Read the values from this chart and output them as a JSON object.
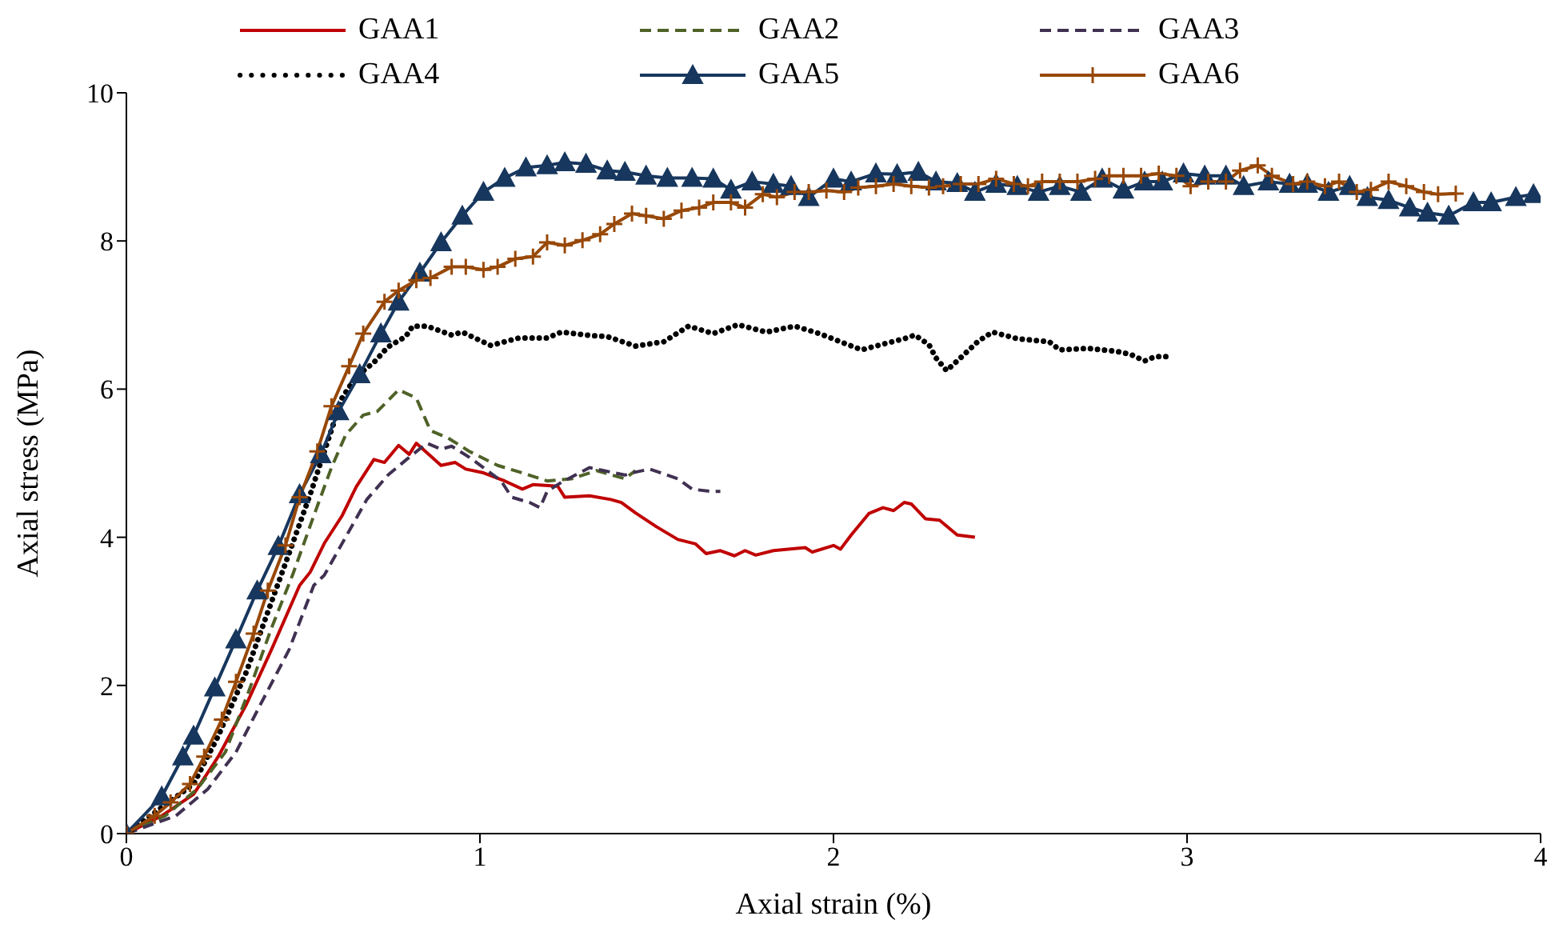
{
  "chart_data": {
    "type": "line",
    "xlabel": "Axial strain (%)",
    "ylabel": "Axial stress (MPa)",
    "xlim": [
      0,
      4
    ],
    "xticks": [
      0,
      1,
      2,
      3,
      4
    ],
    "ylim": [
      0,
      10
    ],
    "yticks": [
      0,
      2,
      4,
      6,
      8,
      10
    ],
    "grid": false,
    "legend": "top",
    "series": [
      {
        "name": "GAA1",
        "color": "#c00000",
        "line_style": "solid",
        "marker": "none",
        "x": [
          0,
          0.1,
          0.19,
          0.26,
          0.34,
          0.41,
          0.49,
          0.52,
          0.56,
          0.61,
          0.65,
          0.7,
          0.73,
          0.77,
          0.8,
          0.82,
          0.89,
          0.93,
          0.96,
          1.01,
          1.07,
          1.12,
          1.15,
          1.22,
          1.24,
          1.31,
          1.37,
          1.4,
          1.44,
          1.5,
          1.56,
          1.61,
          1.64,
          1.68,
          1.72,
          1.75,
          1.78,
          1.83,
          1.92,
          1.94,
          2.0,
          2.02,
          2.05,
          2.1,
          2.14,
          2.17,
          2.2,
          2.22,
          2.26,
          2.3,
          2.35,
          2.4
        ],
        "values": [
          0,
          0.24,
          0.53,
          1.04,
          1.75,
          2.48,
          3.35,
          3.53,
          3.92,
          4.29,
          4.68,
          5.05,
          5.01,
          5.24,
          5.12,
          5.27,
          4.97,
          5.01,
          4.92,
          4.87,
          4.76,
          4.65,
          4.71,
          4.69,
          4.54,
          4.56,
          4.51,
          4.47,
          4.33,
          4.14,
          3.97,
          3.91,
          3.78,
          3.82,
          3.75,
          3.82,
          3.76,
          3.82,
          3.86,
          3.8,
          3.89,
          3.84,
          4.03,
          4.32,
          4.4,
          4.36,
          4.47,
          4.45,
          4.25,
          4.23,
          4.03,
          4.0
        ]
      },
      {
        "name": "GAA2",
        "color": "#4f6228",
        "line_style": "dashed",
        "marker": "none",
        "x": [
          0,
          0.11,
          0.2,
          0.28,
          0.35,
          0.41,
          0.47,
          0.53,
          0.58,
          0.62,
          0.67,
          0.71,
          0.77,
          0.82,
          0.86,
          0.91,
          0.97,
          1.05,
          1.12,
          1.19,
          1.26,
          1.33,
          1.41,
          1.44
        ],
        "values": [
          0,
          0.24,
          0.6,
          1.1,
          1.97,
          2.77,
          3.49,
          4.29,
          4.94,
          5.38,
          5.65,
          5.7,
          5.99,
          5.88,
          5.44,
          5.34,
          5.16,
          4.97,
          4.87,
          4.76,
          4.79,
          4.9,
          4.79,
          4.9
        ]
      },
      {
        "name": "GAA3",
        "color": "#403152",
        "line_style": "dashed",
        "marker": "none",
        "x": [
          0,
          0.14,
          0.23,
          0.31,
          0.38,
          0.46,
          0.53,
          0.56,
          0.62,
          0.68,
          0.74,
          0.8,
          0.85,
          0.89,
          0.92,
          0.97,
          1.01,
          1.06,
          1.09,
          1.14,
          1.17,
          1.19,
          1.23,
          1.27,
          1.31,
          1.35,
          1.41,
          1.44,
          1.48,
          1.53,
          1.56,
          1.6,
          1.65,
          1.68
        ],
        "values": [
          0,
          0.24,
          0.6,
          1.1,
          1.75,
          2.48,
          3.35,
          3.49,
          4.0,
          4.51,
          4.84,
          5.08,
          5.27,
          5.19,
          5.23,
          5.08,
          4.94,
          4.76,
          4.54,
          4.47,
          4.4,
          4.62,
          4.74,
          4.84,
          4.94,
          4.9,
          4.84,
          4.88,
          4.92,
          4.84,
          4.79,
          4.65,
          4.62,
          4.62
        ]
      },
      {
        "name": "GAA4",
        "color": "#000000",
        "line_style": "dotted",
        "marker": "none",
        "x": [
          0,
          0.19,
          0.26,
          0.34,
          0.4,
          0.46,
          0.52,
          0.56,
          0.61,
          0.65,
          0.7,
          0.74,
          0.79,
          0.81,
          0.85,
          0.92,
          0.95,
          1.03,
          1.11,
          1.19,
          1.23,
          1.32,
          1.36,
          1.44,
          1.52,
          1.59,
          1.66,
          1.73,
          1.81,
          1.89,
          1.96,
          2.03,
          2.08,
          2.15,
          2.2,
          2.23,
          2.27,
          2.29,
          2.32,
          2.35,
          2.41,
          2.45,
          2.52,
          2.61,
          2.64,
          2.72,
          2.8,
          2.84,
          2.88,
          2.91,
          2.96
        ],
        "values": [
          0,
          0.67,
          1.32,
          2.19,
          2.99,
          3.78,
          4.58,
          5.16,
          5.88,
          6.17,
          6.36,
          6.57,
          6.71,
          6.85,
          6.85,
          6.73,
          6.77,
          6.59,
          6.69,
          6.69,
          6.77,
          6.72,
          6.71,
          6.58,
          6.64,
          6.85,
          6.75,
          6.87,
          6.77,
          6.85,
          6.75,
          6.62,
          6.53,
          6.62,
          6.68,
          6.73,
          6.6,
          6.42,
          6.25,
          6.38,
          6.65,
          6.77,
          6.68,
          6.64,
          6.53,
          6.55,
          6.51,
          6.47,
          6.38,
          6.44,
          6.44
        ]
      },
      {
        "name": "GAA5",
        "color": "#17375e",
        "line_style": "solid",
        "marker": "triangle",
        "x": [
          0,
          0.1,
          0.16,
          0.19,
          0.25,
          0.31,
          0.37,
          0.43,
          0.49,
          0.55,
          0.6,
          0.66,
          0.72,
          0.77,
          0.83,
          0.89,
          0.95,
          1.01,
          1.07,
          1.13,
          1.19,
          1.24,
          1.3,
          1.36,
          1.41,
          1.47,
          1.53,
          1.6,
          1.66,
          1.71,
          1.77,
          1.83,
          1.88,
          1.93,
          2.0,
          2.05,
          2.12,
          2.18,
          2.24,
          2.29,
          2.35,
          2.4,
          2.46,
          2.52,
          2.58,
          2.64,
          2.7,
          2.76,
          2.82,
          2.88,
          2.93,
          2.99,
          3.05,
          3.11,
          3.16,
          3.23,
          3.29,
          3.34,
          3.4,
          3.46,
          3.51,
          3.57,
          3.63,
          3.68,
          3.74,
          3.81,
          3.86,
          3.93,
          3.98
        ],
        "values": [
          0,
          0.5,
          1.04,
          1.32,
          1.97,
          2.62,
          3.28,
          3.88,
          4.58,
          5.12,
          5.7,
          6.2,
          6.75,
          7.18,
          7.57,
          7.98,
          8.34,
          8.66,
          8.85,
          8.99,
          9.02,
          9.06,
          9.04,
          8.95,
          8.93,
          8.88,
          8.85,
          8.85,
          8.84,
          8.69,
          8.8,
          8.77,
          8.74,
          8.59,
          8.84,
          8.8,
          8.91,
          8.9,
          8.93,
          8.8,
          8.78,
          8.66,
          8.77,
          8.74,
          8.66,
          8.74,
          8.66,
          8.84,
          8.69,
          8.8,
          8.8,
          8.91,
          8.88,
          8.88,
          8.74,
          8.8,
          8.77,
          8.77,
          8.66,
          8.74,
          8.59,
          8.55,
          8.45,
          8.38,
          8.34,
          8.52,
          8.52,
          8.59,
          8.63
        ]
      },
      {
        "name": "GAA6",
        "color": "#984807",
        "line_style": "solid",
        "marker": "cross",
        "x": [
          0,
          0.08,
          0.125,
          0.18,
          0.22,
          0.27,
          0.31,
          0.36,
          0.4,
          0.45,
          0.49,
          0.54,
          0.58,
          0.63,
          0.67,
          0.73,
          0.77,
          0.82,
          0.86,
          0.92,
          0.96,
          1.01,
          1.05,
          1.1,
          1.15,
          1.19,
          1.24,
          1.29,
          1.34,
          1.38,
          1.43,
          1.47,
          1.52,
          1.57,
          1.62,
          1.66,
          1.71,
          1.75,
          1.8,
          1.84,
          1.89,
          1.93,
          1.98,
          2.03,
          2.07,
          2.12,
          2.17,
          2.22,
          2.27,
          2.31,
          2.36,
          2.41,
          2.46,
          2.51,
          2.55,
          2.59,
          2.64,
          2.69,
          2.74,
          2.78,
          2.82,
          2.87,
          2.92,
          2.97,
          3.01,
          3.06,
          3.11,
          3.15,
          3.2,
          3.24,
          3.3,
          3.34,
          3.39,
          3.43,
          3.48,
          3.52,
          3.57,
          3.62,
          3.67,
          3.71,
          3.76
        ],
        "values": [
          0,
          0.24,
          0.42,
          0.67,
          1.04,
          1.54,
          2.05,
          2.7,
          3.28,
          3.89,
          4.54,
          5.16,
          5.77,
          6.31,
          6.75,
          7.18,
          7.33,
          7.47,
          7.5,
          7.65,
          7.65,
          7.61,
          7.65,
          7.76,
          7.79,
          7.98,
          7.94,
          8.01,
          8.09,
          8.23,
          8.37,
          8.34,
          8.3,
          8.41,
          8.45,
          8.52,
          8.52,
          8.45,
          8.63,
          8.59,
          8.66,
          8.66,
          8.68,
          8.66,
          8.72,
          8.74,
          8.77,
          8.74,
          8.72,
          8.74,
          8.77,
          8.77,
          8.84,
          8.77,
          8.74,
          8.8,
          8.8,
          8.8,
          8.84,
          8.88,
          8.88,
          8.88,
          8.91,
          8.88,
          8.74,
          8.8,
          8.8,
          8.95,
          9.02,
          8.88,
          8.77,
          8.8,
          8.74,
          8.8,
          8.66,
          8.69,
          8.8,
          8.74,
          8.66,
          8.63,
          8.64
        ]
      }
    ]
  }
}
